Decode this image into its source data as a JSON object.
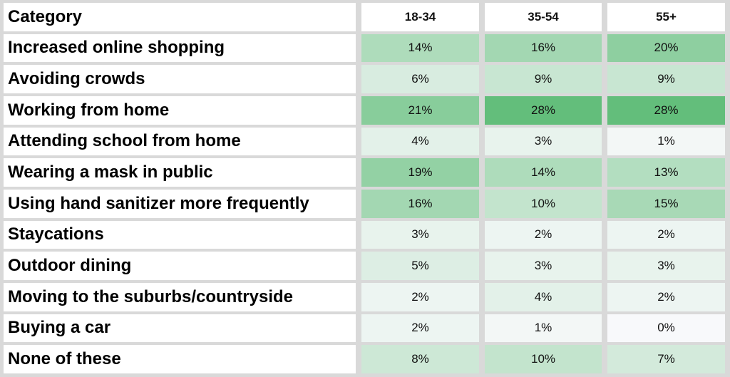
{
  "table": {
    "header": [
      "Category",
      "18-34",
      "35-54",
      "55+"
    ],
    "rows": [
      [
        "Increased online shopping",
        "14%",
        "16%",
        "20%"
      ],
      [
        "Avoiding crowds",
        "6%",
        "9%",
        "9%"
      ],
      [
        "Working from home",
        "21%",
        "28%",
        "28%"
      ],
      [
        "Attending school from home",
        "4%",
        "3%",
        "1%"
      ],
      [
        "Wearing a mask in public",
        "19%",
        "14%",
        "13%"
      ],
      [
        "Using hand sanitizer more frequently",
        "16%",
        "10%",
        "15%"
      ],
      [
        "Staycations",
        "3%",
        "2%",
        "2%"
      ],
      [
        "Outdoor dining",
        "5%",
        "3%",
        "3%"
      ],
      [
        "Moving to the suburbs/countryside",
        "2%",
        "4%",
        "2%"
      ],
      [
        "Buying a car",
        "2%",
        "1%",
        "0%"
      ],
      [
        "None of these",
        "8%",
        "10%",
        "7%"
      ]
    ]
  }
}
